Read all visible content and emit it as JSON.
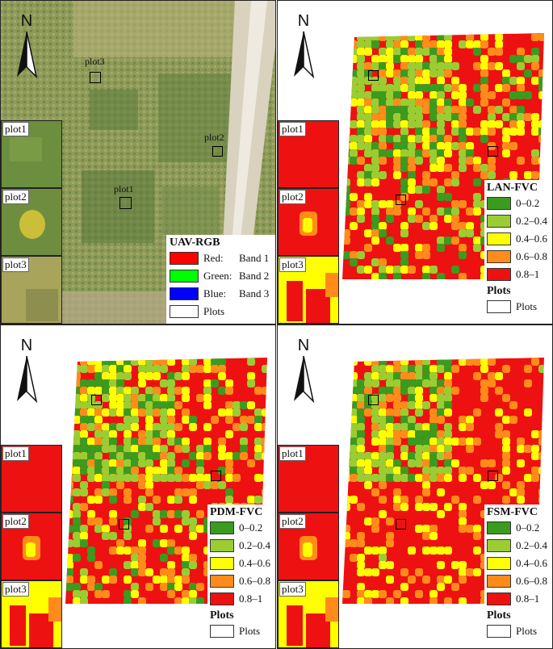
{
  "north_label": "N",
  "inset_labels": [
    "plot1",
    "plot2",
    "plot3"
  ],
  "plot_labels": [
    "plot1",
    "plot2",
    "plot3"
  ],
  "panels": {
    "rgb": {
      "legend_title": "UAV-RGB",
      "bands": [
        {
          "label": "Red:",
          "band": "Band",
          "num": "1",
          "color": "#ff0000"
        },
        {
          "label": "Green:",
          "band": "Band",
          "num": "2",
          "color": "#00ff00"
        },
        {
          "label": "Blue:",
          "band": "Band",
          "num": "3",
          "color": "#0000ff"
        }
      ],
      "plots_label": "Plots"
    },
    "lan": {
      "legend_title": "LAN-FVC",
      "plots_title": "Plots",
      "plots_label": "Plots"
    },
    "pdm": {
      "legend_title": "PDM-FVC",
      "plots_title": "Plots",
      "plots_label": "Plots"
    },
    "fsm": {
      "legend_title": "FSM-FVC",
      "plots_title": "Plots",
      "plots_label": "Plots"
    }
  },
  "fvc_classes": [
    {
      "label": "0–0.2",
      "color": "#3a9b1e"
    },
    {
      "label": "0.2–0.4",
      "color": "#9acd32"
    },
    {
      "label": "0.4–0.6",
      "color": "#ffff00"
    },
    {
      "label": "0.6–0.8",
      "color": "#ff8c1a"
    },
    {
      "label": "0.8–1",
      "color": "#ee1111"
    }
  ]
}
